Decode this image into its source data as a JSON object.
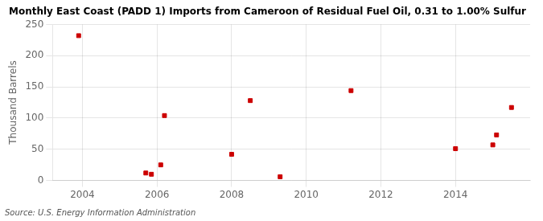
{
  "chart_data": {
    "type": "scatter",
    "title": "Monthly East Coast (PADD 1) Imports from Cameroon of Residual Fuel Oil, 0.31 to 1.00% Sulfur",
    "y_label": "Thousand Barrels",
    "source": "Source: U.S. Energy Information Administration",
    "x": [
      2003.9,
      2005.7,
      2005.85,
      2006.1,
      2006.2,
      2008.0,
      2008.5,
      2009.3,
      2011.2,
      2014.0,
      2015.0,
      2015.1,
      2015.5
    ],
    "values": [
      232,
      12,
      10,
      25,
      104,
      42,
      128,
      6,
      144,
      51,
      57,
      73,
      117
    ],
    "color": "#cc0000",
    "marker": "square",
    "xlim": [
      2003.2,
      2016.0
    ],
    "ylim": [
      0,
      250
    ],
    "xticks": [
      2004,
      2006,
      2008,
      2010,
      2012,
      2014
    ],
    "yticks": [
      0,
      50,
      100,
      150,
      200,
      250
    ],
    "grid": true
  }
}
